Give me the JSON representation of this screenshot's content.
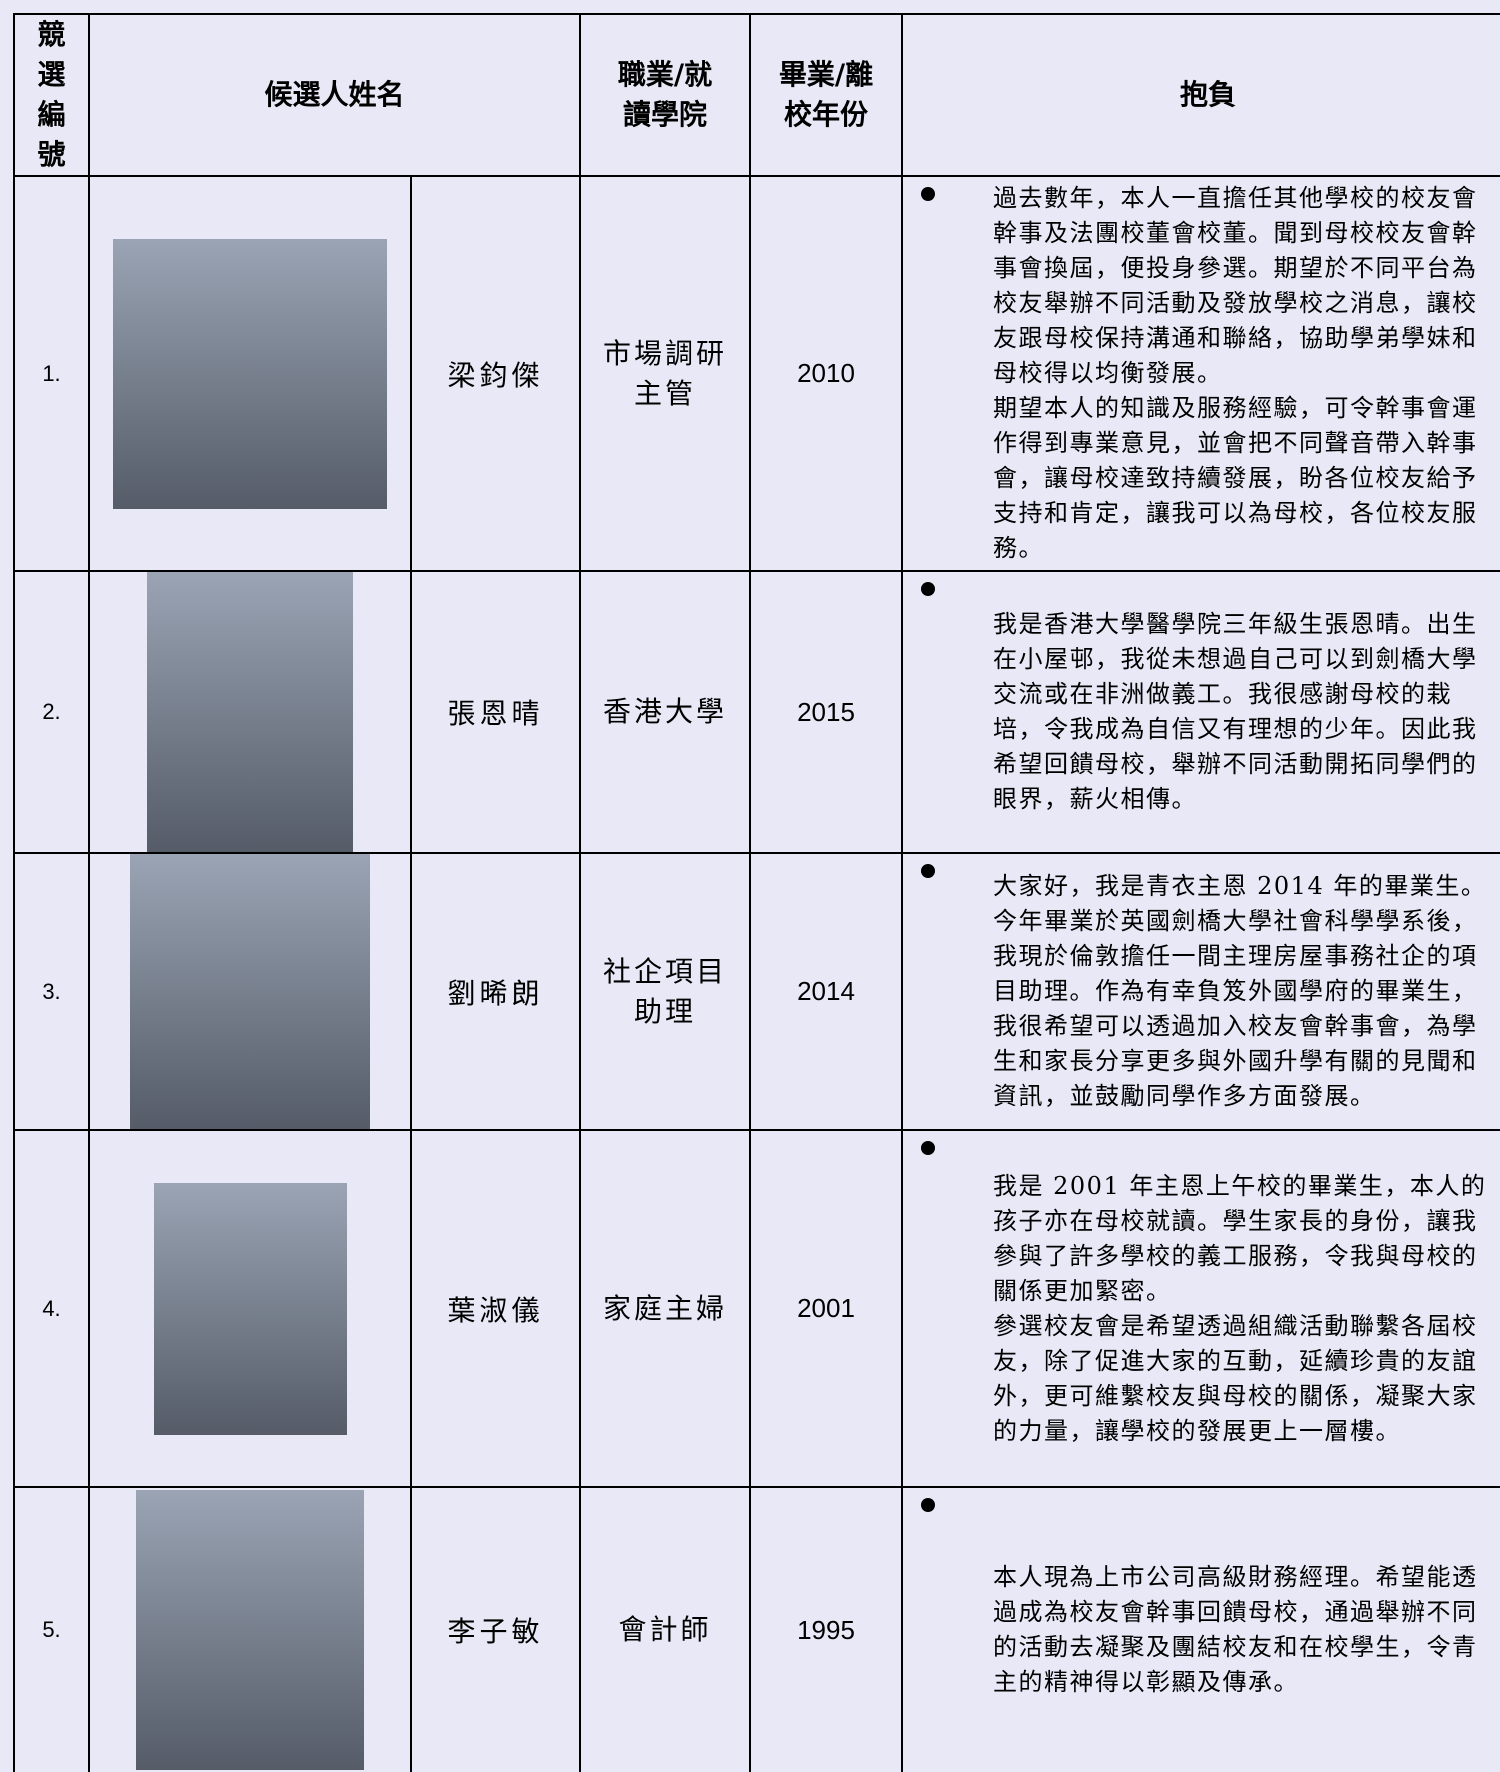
{
  "table": {
    "header": [
      "競選編號",
      "候選人姓名",
      "職業/就讀學院",
      "畢業/離校年份",
      "抱負"
    ],
    "rows": [
      {
        "number": "1.",
        "name": "梁鈞傑",
        "occupation": "市場調研主管",
        "year": "2010",
        "aspiration": [
          "過去數年，本人一直擔任其他學校的校友會幹事及法團校董會校董。聞到母校校友會幹事會換屆，便投身參選。期望於不同平台為校友舉辦不同活動及發放學校之消息，讓校友跟母校保持溝通和聯絡，協助學弟學妹和母校得以均衡發展。",
          "期望本人的知識及服務經驗，可令幹事會運作得到專業意見，並會把不同聲音帶入幹事會，讓母校達致持續發展，盼各位校友給予支持和肯定，讓我可以為母校，各位校友服務。"
        ]
      },
      {
        "number": "2.",
        "name": "張恩晴",
        "occupation": "香港大學",
        "year": "2015",
        "aspiration": [
          "我是香港大學醫學院三年級生張恩晴。出生在小屋邨，我從未想過自己可以到劍橋大學交流或在非洲做義工。我很感謝母校的栽培，令我成為自信又有理想的少年。因此我希望回饋母校，舉辦不同活動開拓同學們的眼界，薪火相傳。"
        ]
      },
      {
        "number": "3.",
        "name": "劉晞朗",
        "occupation": "社企項目助理",
        "year": "2014",
        "aspiration": [
          "大家好，我是青衣主恩 2014 年的畢業生。今年畢業於英國劍橋大學社會科學學系後，我現於倫敦擔任一間主理房屋事務社企的項目助理。作為有幸負笈外國學府的畢業生，我很希望可以透過加入校友會幹事會，為學生和家長分享更多與外國升學有關的見聞和資訊，並鼓勵同學作多方面發展。"
        ]
      },
      {
        "number": "4.",
        "name": "葉淑儀",
        "occupation": "家庭主婦",
        "year": "2001",
        "aspiration": [
          "我是 2001 年主恩上午校的畢業生，本人的孩子亦在母校就讀。學生家長的身份，讓我參與了許多學校的義工服務，令我與母校的關係更加緊密。",
          "參選校友會是希望透過組織活動聯繫各屆校友，除了促進大家的互動，延續珍貴的友誼外，更可維繫校友與母校的關係，凝聚大家的力量，讓學校的發展更上一層樓。"
        ]
      },
      {
        "number": "5.",
        "name": "李子敏",
        "occupation": "會計師",
        "year": "1995",
        "aspiration": [
          "本人現為上市公司高級財務經理。希望能透過成為校友會幹事回饋母校，通過舉辦不同的活動去凝聚及團結校友和在校學生，令青主的精神得以彰顯及傳承。"
        ]
      }
    ]
  }
}
